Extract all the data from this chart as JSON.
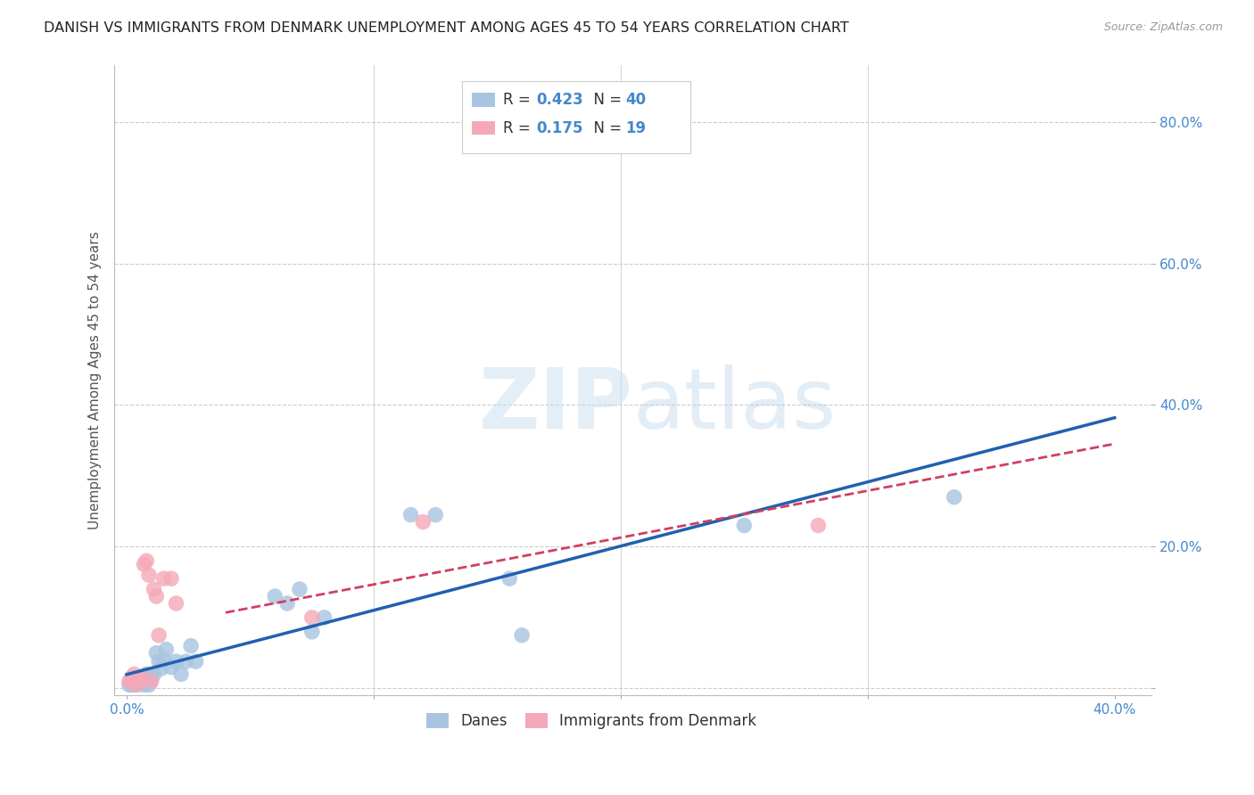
{
  "title": "DANISH VS IMMIGRANTS FROM DENMARK UNEMPLOYMENT AMONG AGES 45 TO 54 YEARS CORRELATION CHART",
  "source": "Source: ZipAtlas.com",
  "ylabel": "Unemployment Among Ages 45 to 54 years",
  "xlim": [
    -0.005,
    0.415
  ],
  "ylim": [
    -0.01,
    0.88
  ],
  "xticks": [
    0.0,
    0.1,
    0.2,
    0.3,
    0.4
  ],
  "yticks": [
    0.0,
    0.2,
    0.4,
    0.6,
    0.8
  ],
  "xticklabels_show": [
    "0.0%",
    "",
    "",
    "",
    "40.0%"
  ],
  "yticklabels_show": [
    "",
    "20.0%",
    "40.0%",
    "60.0%",
    "80.0%"
  ],
  "danes_R": 0.423,
  "danes_N": 40,
  "immigrants_R": 0.175,
  "immigrants_N": 19,
  "danes_color": "#a8c4e0",
  "immigrants_color": "#f4a8b8",
  "danes_line_color": "#2060b0",
  "immigrants_line_color": "#d04060",
  "watermark_zip": "ZIP",
  "watermark_atlas": "atlas",
  "legend_entries": [
    "Danes",
    "Immigrants from Denmark"
  ],
  "grid_color": "#cccccc",
  "background_color": "#ffffff",
  "title_color": "#222222",
  "axis_label_color": "#555555",
  "tick_color": "#4488cc",
  "title_fontsize": 11.5,
  "axis_label_fontsize": 11,
  "danes_x": [
    0.001,
    0.002,
    0.002,
    0.003,
    0.003,
    0.004,
    0.004,
    0.005,
    0.005,
    0.006,
    0.006,
    0.007,
    0.007,
    0.008,
    0.008,
    0.009,
    0.01,
    0.011,
    0.012,
    0.013,
    0.014,
    0.015,
    0.016,
    0.018,
    0.02,
    0.022,
    0.024,
    0.026,
    0.028,
    0.06,
    0.065,
    0.07,
    0.075,
    0.08,
    0.115,
    0.125,
    0.155,
    0.16,
    0.25,
    0.335
  ],
  "danes_y": [
    0.005,
    0.005,
    0.01,
    0.005,
    0.01,
    0.005,
    0.01,
    0.01,
    0.015,
    0.01,
    0.015,
    0.005,
    0.01,
    0.015,
    0.02,
    0.005,
    0.015,
    0.02,
    0.05,
    0.038,
    0.028,
    0.04,
    0.055,
    0.03,
    0.038,
    0.02,
    0.038,
    0.06,
    0.038,
    0.13,
    0.12,
    0.14,
    0.08,
    0.1,
    0.245,
    0.245,
    0.155,
    0.075,
    0.23,
    0.27
  ],
  "immigrants_x": [
    0.001,
    0.002,
    0.003,
    0.004,
    0.005,
    0.006,
    0.007,
    0.008,
    0.009,
    0.01,
    0.011,
    0.012,
    0.013,
    0.015,
    0.018,
    0.02,
    0.075,
    0.12,
    0.28
  ],
  "immigrants_y": [
    0.01,
    0.015,
    0.02,
    0.005,
    0.01,
    0.015,
    0.175,
    0.18,
    0.16,
    0.01,
    0.14,
    0.13,
    0.075,
    0.155,
    0.155,
    0.12,
    0.1,
    0.235,
    0.23
  ]
}
